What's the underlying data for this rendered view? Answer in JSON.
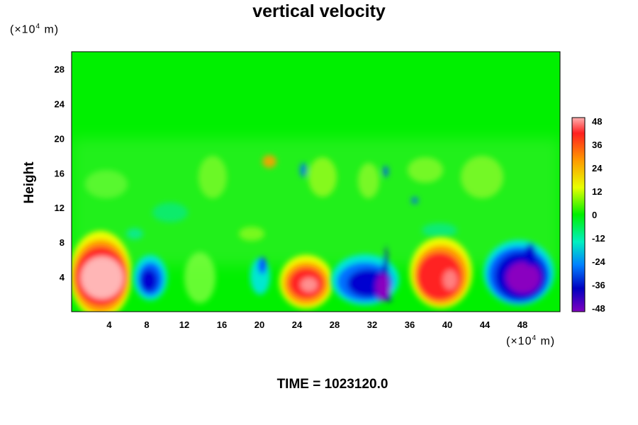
{
  "chart_data": {
    "type": "heatmap",
    "title": "vertical velocity",
    "ylabel": "Height",
    "x_unit": {
      "prefix": "(×10",
      "exp": "4",
      "suffix": " m)"
    },
    "y_unit": {
      "prefix": "(×10",
      "exp": "4",
      "suffix": " m)"
    },
    "xlim": [
      0,
      52
    ],
    "ylim": [
      0,
      30
    ],
    "x_ticks": [
      4,
      8,
      12,
      16,
      20,
      24,
      28,
      32,
      36,
      40,
      44,
      48
    ],
    "y_ticks": [
      4,
      8,
      12,
      16,
      20,
      24,
      28
    ],
    "colorbar": {
      "range": [
        -48,
        48
      ],
      "ticks": [
        48,
        36,
        24,
        12,
        0,
        -12,
        -24,
        -36,
        -48
      ]
    },
    "features": [
      {
        "x": 3.8,
        "y": 4.2,
        "value": 48
      },
      {
        "x": 7.8,
        "y": 3.8,
        "value": -40
      },
      {
        "x": 13.5,
        "y": 3.5,
        "value": 6
      },
      {
        "x": 20.2,
        "y": 5.0,
        "value": -22
      },
      {
        "x": 24.8,
        "y": 3.4,
        "value": 40
      },
      {
        "x": 30.5,
        "y": 3.5,
        "value": -38
      },
      {
        "x": 32.8,
        "y": 4.0,
        "value": -46
      },
      {
        "x": 38.8,
        "y": 4.0,
        "value": 42
      },
      {
        "x": 47.0,
        "y": 3.8,
        "value": -48
      },
      {
        "x": 21.2,
        "y": 17.5,
        "value": 22
      }
    ]
  },
  "footer": {
    "time_label": "TIME = 1023120.0"
  }
}
